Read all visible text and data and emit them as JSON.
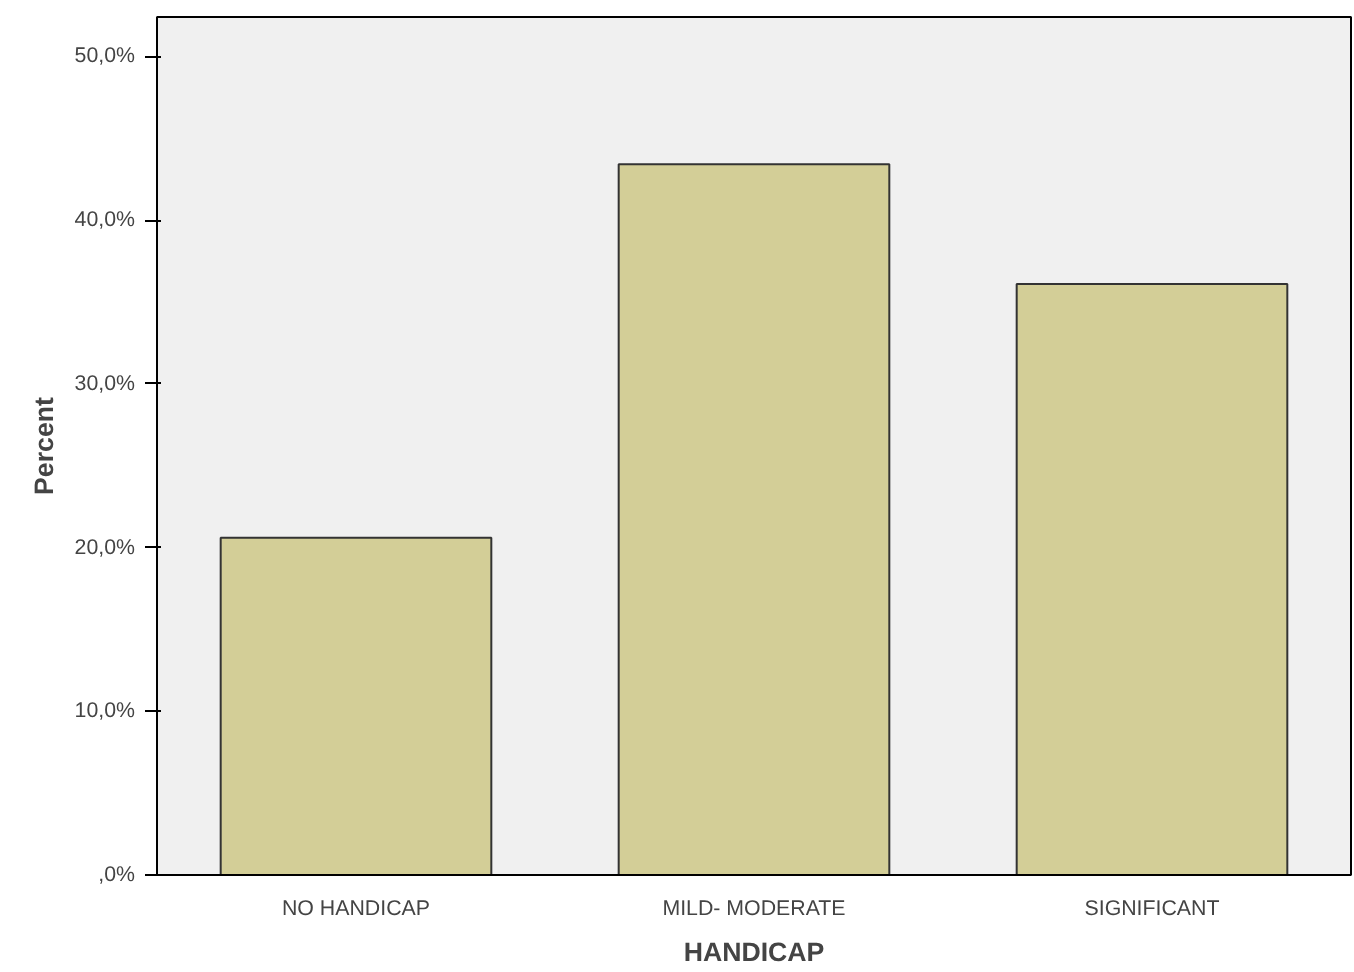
{
  "chart_data": {
    "type": "bar",
    "xlabel": "HANDICAP",
    "ylabel": "Percent",
    "categories": [
      "NO HANDICAP",
      "MILD- MODERATE",
      "SIGNIFICANT"
    ],
    "values": [
      20.6,
      43.4,
      36.1
    ],
    "color": "#d3ce97",
    "ylim": [
      0,
      52.4
    ],
    "yticks": [
      {
        "value": 0,
        "label": ",0%"
      },
      {
        "value": 10,
        "label": "10,0%"
      },
      {
        "value": 20,
        "label": "20,0%"
      },
      {
        "value": 30,
        "label": "30,0%"
      },
      {
        "value": 40,
        "label": "40,0%"
      },
      {
        "value": 50,
        "label": "50,0%"
      }
    ],
    "grid": false
  }
}
